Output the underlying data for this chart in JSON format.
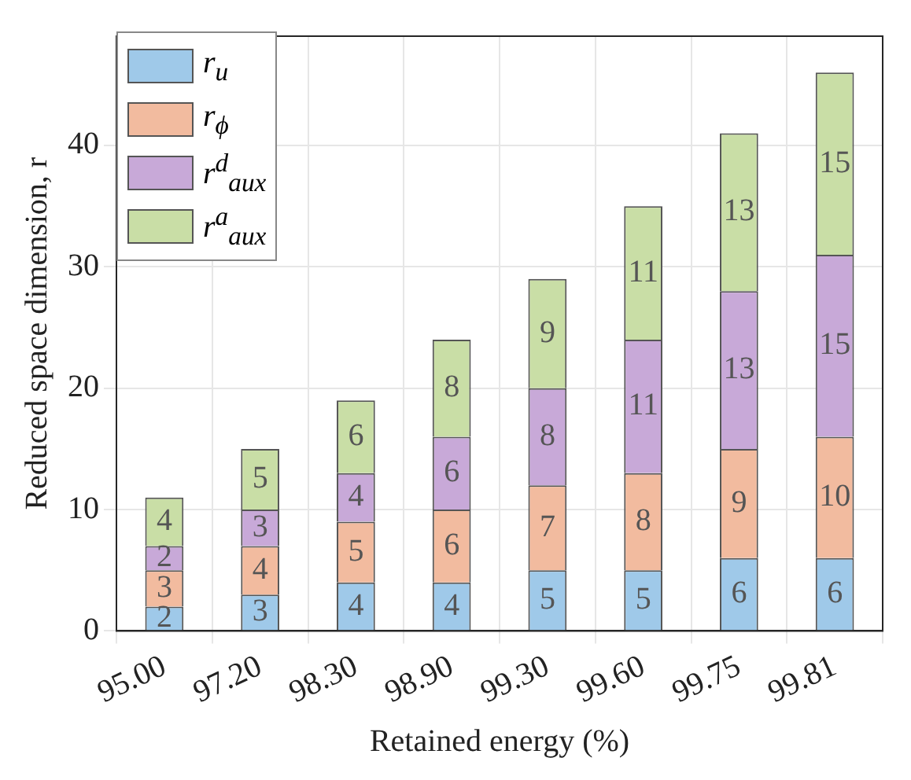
{
  "chart_data": {
    "type": "bar",
    "stacked": true,
    "xlabel": "Retained energy (%)",
    "ylabel": "Reduced space dimension, r",
    "categories": [
      "95.00",
      "97.20",
      "98.30",
      "98.90",
      "99.30",
      "99.60",
      "99.75",
      "99.81"
    ],
    "series": [
      {
        "name": "r$_{u}$",
        "color": "#9fc9e9",
        "values": [
          2,
          3,
          4,
          4,
          5,
          5,
          6,
          6
        ]
      },
      {
        "name": "r$_{ϕ}$",
        "color": "#f2bb9f",
        "values": [
          3,
          4,
          5,
          6,
          7,
          8,
          9,
          10
        ]
      },
      {
        "name": "r$^{d}$$_{aux}$",
        "color": "#c8a9d8",
        "values": [
          2,
          3,
          4,
          6,
          8,
          11,
          13,
          15
        ]
      },
      {
        "name": "r$^{a}$$_{aux}$",
        "color": "#c9dea6",
        "values": [
          4,
          5,
          6,
          8,
          9,
          11,
          13,
          15
        ]
      }
    ],
    "ylim": [
      0,
      49
    ],
    "yticks": [
      0,
      10,
      20,
      30,
      40
    ],
    "grid": true,
    "legend": "top left",
    "data_labels": true
  }
}
